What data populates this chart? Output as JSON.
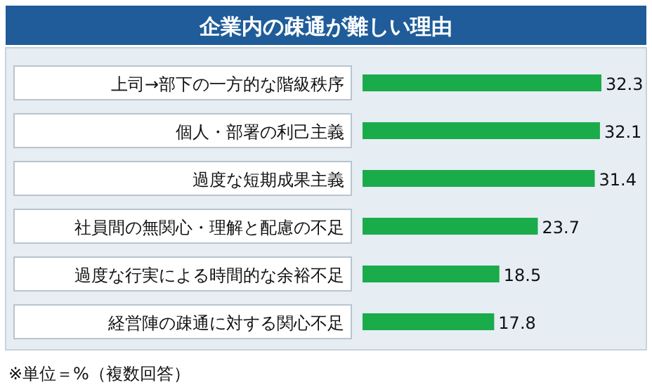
{
  "chart_data": {
    "type": "bar",
    "orientation": "horizontal",
    "title": "企業内の疎通が難しい理由",
    "categories": [
      "上司→部下の一方的な階級秩序",
      "個人・部署の利己主義",
      "過度な短期成果主義",
      "社員間の無関心・理解と配慮の不足",
      "過度な行実による時間的な余裕不足",
      "経営陣の疎通に対する関心不足"
    ],
    "values": [
      32.3,
      32.1,
      31.4,
      23.7,
      18.5,
      17.8
    ],
    "color": "#1aab4b",
    "data_labels": true,
    "annotations": [
      "※単位＝%（複数回答）"
    ]
  }
}
